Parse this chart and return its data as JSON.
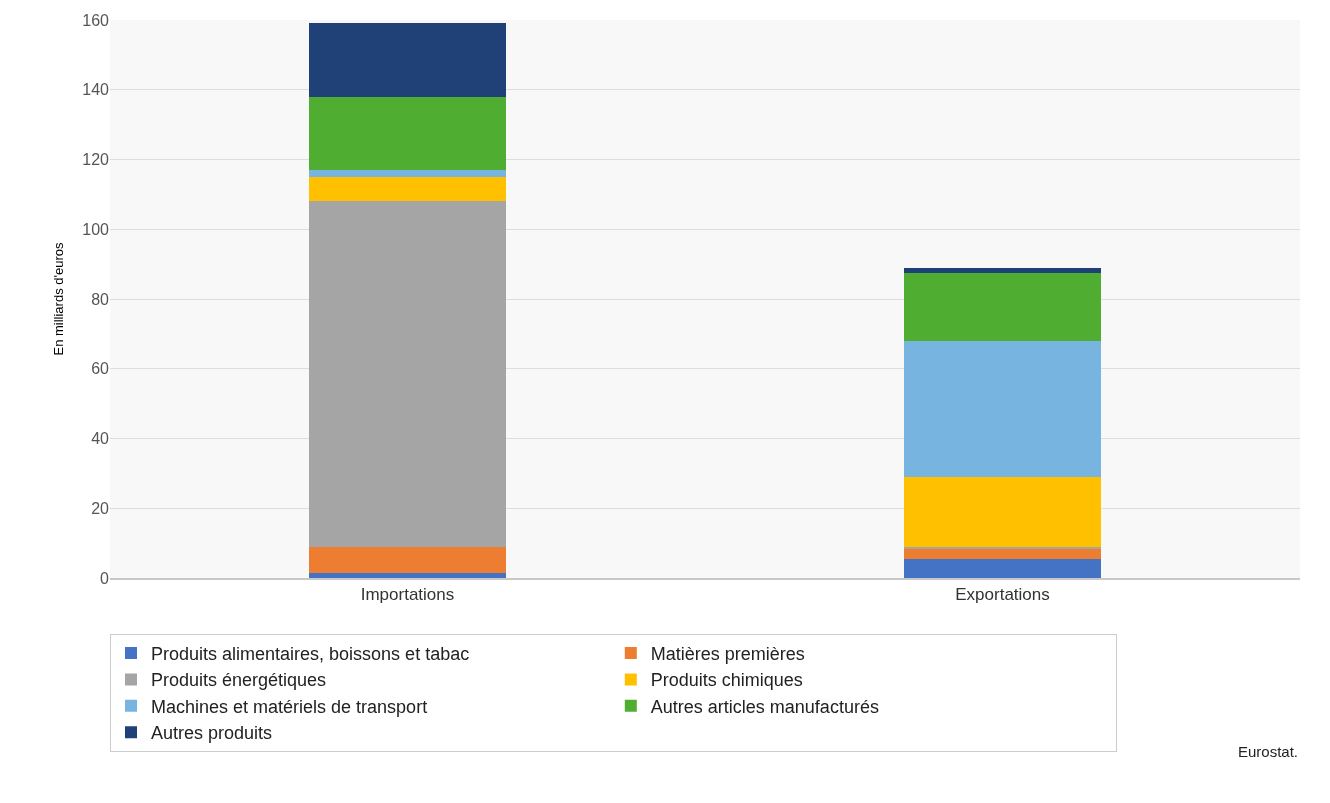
{
  "chart_data": {
    "type": "bar",
    "stacked": true,
    "ylabel": "En milliards d'euros",
    "categories": [
      "Importations",
      "Exportations"
    ],
    "series": [
      {
        "name": "Produits alimentaires, boissons et tabac",
        "color": "#4472c4",
        "values": [
          1.5,
          5.5
        ]
      },
      {
        "name": "Matières premières",
        "color": "#ed7d31",
        "values": [
          7.5,
          3
        ]
      },
      {
        "name": "Produits énergétiques",
        "color": "#a5a5a5",
        "values": [
          99,
          0.5
        ]
      },
      {
        "name": "Produits chimiques",
        "color": "#ffc000",
        "values": [
          7,
          20
        ]
      },
      {
        "name": "Machines et matériels de transport",
        "color": "#78b4e0",
        "values": [
          2,
          39
        ]
      },
      {
        "name": "Autres articles manufacturés",
        "color": "#4fae32",
        "values": [
          21,
          19.5
        ]
      },
      {
        "name": "Autres produits",
        "color": "#1f4177",
        "values": [
          21,
          1.5
        ]
      }
    ],
    "ylim": [
      0,
      160
    ],
    "yticks": [
      0,
      20,
      40,
      60,
      80,
      100,
      120,
      140,
      160
    ],
    "grid": "y",
    "legend": "bottom",
    "annotations": [
      "Eurostat."
    ]
  }
}
